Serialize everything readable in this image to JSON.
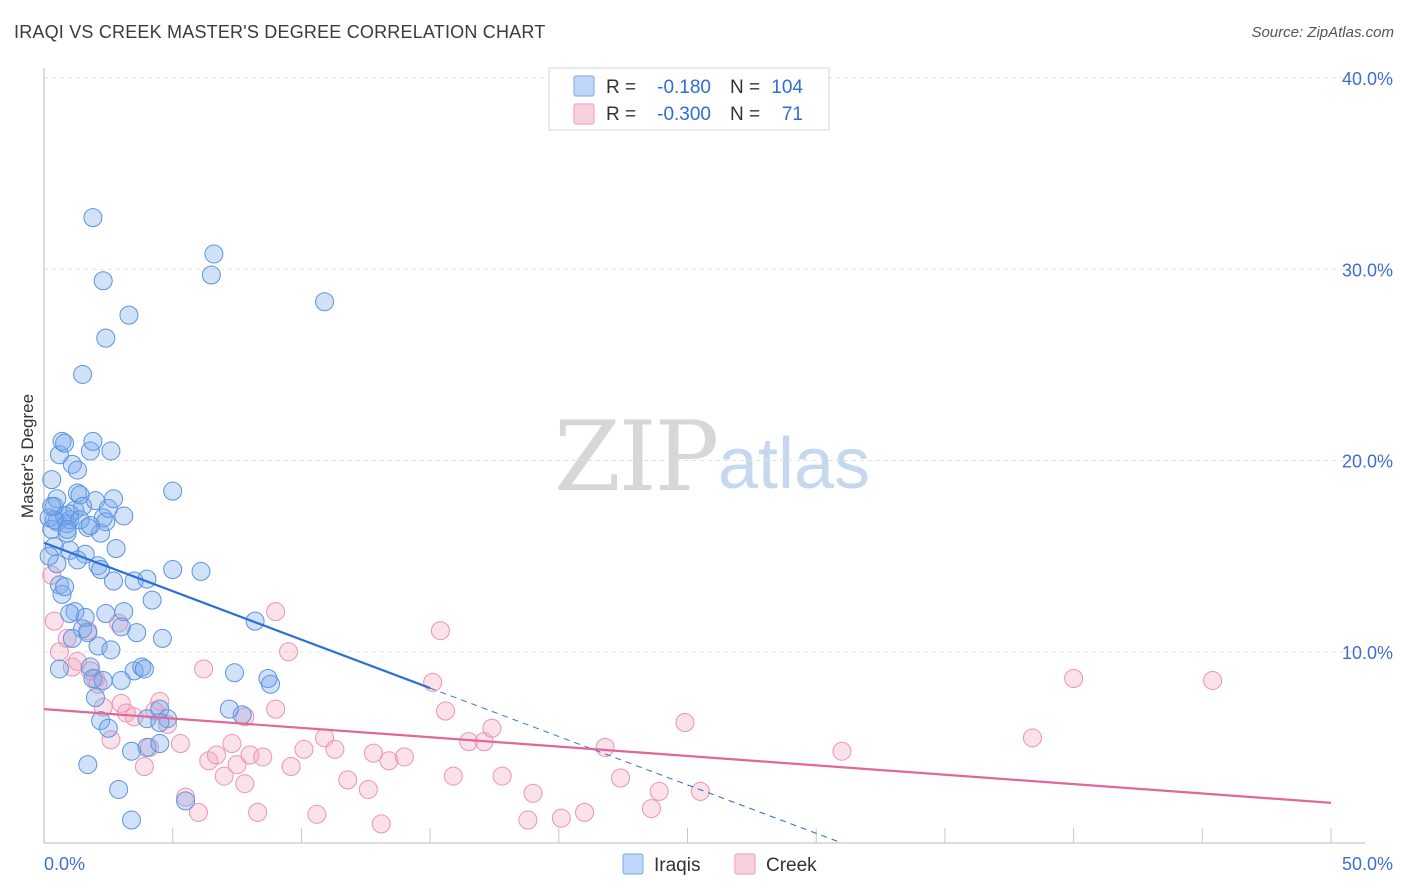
{
  "header": {
    "title": "IRAQI VS CREEK MASTER'S DEGREE CORRELATION CHART",
    "source": "Source: ZipAtlas.com"
  },
  "watermark": {
    "zip": "ZIP",
    "atlas": "atlas"
  },
  "legend": {
    "r_label": "R =",
    "n_label": "N =",
    "rows": [
      {
        "series": "Iraqis",
        "r": "-0.180",
        "n": "104",
        "color": "#8ab4f0"
      },
      {
        "series": "Creek",
        "r": "-0.300",
        "n": "71",
        "color": "#f4a9c1"
      }
    ]
  },
  "bottom_legend": {
    "items": [
      "Iraqis",
      "Creek"
    ]
  },
  "chart_data": {
    "type": "scatter",
    "title": "IRAQI VS CREEK MASTER'S DEGREE CORRELATION CHART",
    "xlabel": "",
    "ylabel": "Master's Degree",
    "xlim": [
      0,
      50
    ],
    "ylim": [
      0,
      40
    ],
    "x_tick_labels": [
      "0.0%",
      "50.0%"
    ],
    "y_ticks": [
      10,
      20,
      30,
      40
    ],
    "y_tick_labels": [
      "10.0%",
      "20.0%",
      "30.0%",
      "40.0%"
    ],
    "grid": true,
    "series": [
      {
        "name": "Iraqis",
        "color": "#6fa0e8",
        "line_color": "#2c6fd6",
        "trend": {
          "x0": 0,
          "y0": 15.7,
          "x1": 15,
          "y1": 8.1,
          "dashed_to_x": 31,
          "dashed_to_y": 0
        },
        "points": [
          [
            0.2,
            17.0
          ],
          [
            0.3,
            16.4
          ],
          [
            0.4,
            17.6
          ],
          [
            0.5,
            16.8
          ],
          [
            0.3,
            19.0
          ],
          [
            0.6,
            20.3
          ],
          [
            0.7,
            21.0
          ],
          [
            0.4,
            15.5
          ],
          [
            0.5,
            14.6
          ],
          [
            0.8,
            17.1
          ],
          [
            0.9,
            16.7
          ],
          [
            1.0,
            16.9
          ],
          [
            1.1,
            19.8
          ],
          [
            1.2,
            17.4
          ],
          [
            0.6,
            13.5
          ],
          [
            0.7,
            13.0
          ],
          [
            1.3,
            18.3
          ],
          [
            1.4,
            18.2
          ],
          [
            1.5,
            17.6
          ],
          [
            1.6,
            15.1
          ],
          [
            1.7,
            16.5
          ],
          [
            1.8,
            20.5
          ],
          [
            1.9,
            21.0
          ],
          [
            2.0,
            17.9
          ],
          [
            2.1,
            14.5
          ],
          [
            2.2,
            16.2
          ],
          [
            2.3,
            17.0
          ],
          [
            2.4,
            16.8
          ],
          [
            2.5,
            17.5
          ],
          [
            2.6,
            20.5
          ],
          [
            2.7,
            18.0
          ],
          [
            3.1,
            17.1
          ],
          [
            1.9,
            32.7
          ],
          [
            2.3,
            29.4
          ],
          [
            3.3,
            27.6
          ],
          [
            2.4,
            26.4
          ],
          [
            1.5,
            24.5
          ],
          [
            6.6,
            30.8
          ],
          [
            6.5,
            29.7
          ],
          [
            10.9,
            28.3
          ],
          [
            5.0,
            18.4
          ],
          [
            1.0,
            15.3
          ],
          [
            1.3,
            14.8
          ],
          [
            1.2,
            12.1
          ],
          [
            0.8,
            13.4
          ],
          [
            1.5,
            11.2
          ],
          [
            2.1,
            10.3
          ],
          [
            1.1,
            10.7
          ],
          [
            2.7,
            13.7
          ],
          [
            3.1,
            12.1
          ],
          [
            3.6,
            11.0
          ],
          [
            3.5,
            13.7
          ],
          [
            4.0,
            13.8
          ],
          [
            4.2,
            12.7
          ],
          [
            5.0,
            14.3
          ],
          [
            6.1,
            14.2
          ],
          [
            4.6,
            10.7
          ],
          [
            3.5,
            9.0
          ],
          [
            2.6,
            10.1
          ],
          [
            1.8,
            9.2
          ],
          [
            1.9,
            8.6
          ],
          [
            2.3,
            8.5
          ],
          [
            3.0,
            11.3
          ],
          [
            2.0,
            7.6
          ],
          [
            3.0,
            8.5
          ],
          [
            4.0,
            6.5
          ],
          [
            4.5,
            7.0
          ],
          [
            4.8,
            6.5
          ],
          [
            3.8,
            9.2
          ],
          [
            7.4,
            8.9
          ],
          [
            8.2,
            11.6
          ],
          [
            8.7,
            8.6
          ],
          [
            8.8,
            8.3
          ],
          [
            7.7,
            6.7
          ],
          [
            7.2,
            7.0
          ],
          [
            4.0,
            5.0
          ],
          [
            3.4,
            4.8
          ],
          [
            2.2,
            6.4
          ],
          [
            2.5,
            6.0
          ],
          [
            4.5,
            5.2
          ],
          [
            1.7,
            4.1
          ],
          [
            2.9,
            2.8
          ],
          [
            3.4,
            1.2
          ],
          [
            5.5,
            2.2
          ],
          [
            0.9,
            16.2
          ],
          [
            1.0,
            17.2
          ],
          [
            1.4,
            16.9
          ],
          [
            0.2,
            15.0
          ],
          [
            2.2,
            14.3
          ],
          [
            2.8,
            15.4
          ],
          [
            1.7,
            11.0
          ],
          [
            0.6,
            9.1
          ],
          [
            3.9,
            9.1
          ],
          [
            1.6,
            11.8
          ],
          [
            1.0,
            12.0
          ],
          [
            4.5,
            6.3
          ],
          [
            0.4,
            16.9
          ],
          [
            0.9,
            16.4
          ],
          [
            1.8,
            16.6
          ],
          [
            0.5,
            18.0
          ],
          [
            0.8,
            20.9
          ],
          [
            1.3,
            19.5
          ],
          [
            2.4,
            12.0
          ],
          [
            0.3,
            17.6
          ]
        ]
      },
      {
        "name": "Creek",
        "color": "#f4a9c1",
        "line_color": "#e0679a",
        "trend": {
          "x0": 0,
          "y0": 7.0,
          "x1": 50,
          "y1": 2.1
        },
        "points": [
          [
            0.3,
            14.0
          ],
          [
            0.4,
            11.6
          ],
          [
            0.6,
            10.0
          ],
          [
            0.9,
            10.7
          ],
          [
            1.1,
            9.2
          ],
          [
            1.3,
            9.5
          ],
          [
            1.7,
            11.1
          ],
          [
            1.8,
            9.0
          ],
          [
            2.0,
            8.6
          ],
          [
            2.3,
            7.1
          ],
          [
            2.6,
            5.4
          ],
          [
            2.9,
            11.5
          ],
          [
            3.0,
            7.3
          ],
          [
            3.2,
            6.8
          ],
          [
            3.5,
            6.6
          ],
          [
            3.9,
            4.0
          ],
          [
            4.1,
            5.0
          ],
          [
            4.5,
            7.4
          ],
          [
            4.8,
            6.2
          ],
          [
            5.3,
            5.2
          ],
          [
            5.5,
            2.4
          ],
          [
            6.0,
            1.6
          ],
          [
            6.2,
            9.1
          ],
          [
            6.4,
            4.3
          ],
          [
            6.7,
            4.6
          ],
          [
            7.0,
            3.5
          ],
          [
            7.3,
            5.2
          ],
          [
            7.5,
            4.1
          ],
          [
            7.8,
            3.1
          ],
          [
            8.0,
            4.6
          ],
          [
            8.3,
            1.6
          ],
          [
            8.5,
            4.5
          ],
          [
            9.0,
            7.0
          ],
          [
            9.0,
            12.1
          ],
          [
            9.5,
            10.0
          ],
          [
            9.6,
            4.0
          ],
          [
            10.1,
            4.9
          ],
          [
            10.6,
            1.5
          ],
          [
            10.9,
            5.5
          ],
          [
            11.3,
            4.9
          ],
          [
            11.8,
            3.3
          ],
          [
            12.6,
            2.8
          ],
          [
            12.8,
            4.7
          ],
          [
            13.1,
            1.0
          ],
          [
            13.4,
            4.3
          ],
          [
            14.0,
            4.5
          ],
          [
            15.1,
            8.4
          ],
          [
            15.4,
            11.1
          ],
          [
            15.6,
            6.9
          ],
          [
            15.9,
            3.5
          ],
          [
            16.5,
            5.3
          ],
          [
            17.1,
            5.3
          ],
          [
            17.4,
            6.0
          ],
          [
            17.8,
            3.5
          ],
          [
            18.8,
            1.2
          ],
          [
            19.0,
            2.6
          ],
          [
            20.1,
            1.3
          ],
          [
            21.0,
            1.6
          ],
          [
            21.8,
            5.0
          ],
          [
            22.4,
            3.4
          ],
          [
            23.6,
            1.8
          ],
          [
            23.9,
            2.7
          ],
          [
            24.9,
            6.3
          ],
          [
            25.5,
            2.7
          ],
          [
            31.0,
            4.8
          ],
          [
            38.4,
            5.5
          ],
          [
            40.0,
            8.6
          ],
          [
            45.4,
            8.5
          ],
          [
            2.1,
            8.3
          ],
          [
            4.3,
            6.9
          ],
          [
            7.8,
            6.6
          ]
        ]
      }
    ]
  }
}
